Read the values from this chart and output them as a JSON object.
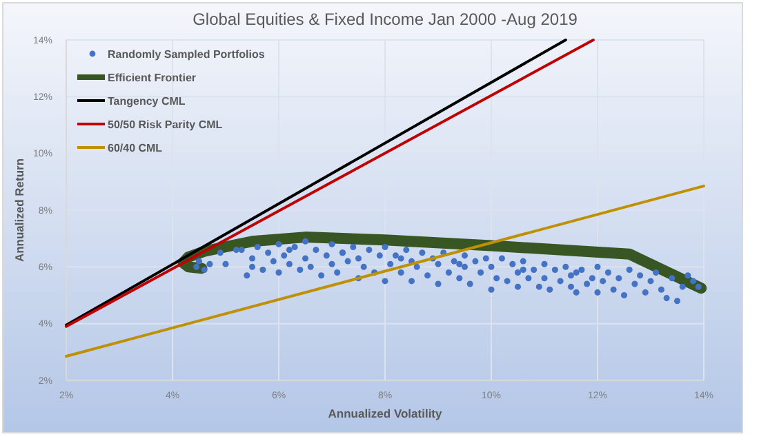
{
  "chart_data": {
    "type": "scatter",
    "title": "Global Equities & Fixed Income Jan 2000 -Aug 2019",
    "xlabel": "Annualized Volatility",
    "ylabel": "Annualized Return",
    "xlim": [
      2,
      14
    ],
    "ylim": [
      2,
      14
    ],
    "xticks": [
      {
        "value": 2,
        "label": "2%"
      },
      {
        "value": 4,
        "label": "4%"
      },
      {
        "value": 6,
        "label": "6%"
      },
      {
        "value": 8,
        "label": "8%"
      },
      {
        "value": 10,
        "label": "10%"
      },
      {
        "value": 12,
        "label": "12%"
      },
      {
        "value": 14,
        "label": "14%"
      }
    ],
    "yticks": [
      {
        "value": 2,
        "label": "2%"
      },
      {
        "value": 4,
        "label": "4%"
      },
      {
        "value": 6,
        "label": "6%"
      },
      {
        "value": 8,
        "label": "8%"
      },
      {
        "value": 10,
        "label": "10%"
      },
      {
        "value": 12,
        "label": "12%"
      },
      {
        "value": 14,
        "label": "14%"
      }
    ],
    "grid": true,
    "legend": "top left",
    "series": [
      {
        "name": "Randomly Sampled Portfolios",
        "marker": "circle",
        "color": "#4472c4",
        "x": [
          4.45,
          4.7,
          4.5,
          4.6,
          4.9,
          5.0,
          5.2,
          5.3,
          5.4,
          5.5,
          5.5,
          5.6,
          5.7,
          5.8,
          5.9,
          6.0,
          6.0,
          6.1,
          6.2,
          6.3,
          6.4,
          6.5,
          6.5,
          6.6,
          6.7,
          6.8,
          6.9,
          7.0,
          7.0,
          7.1,
          7.2,
          7.3,
          7.4,
          7.5,
          7.5,
          7.6,
          7.7,
          7.8,
          7.9,
          8.0,
          8.0,
          8.1,
          8.2,
          8.3,
          8.4,
          8.5,
          8.5,
          8.6,
          8.7,
          8.8,
          8.9,
          9.0,
          9.0,
          9.1,
          9.2,
          9.3,
          9.4,
          9.5,
          9.5,
          9.6,
          9.7,
          9.8,
          9.9,
          10.0,
          10.0,
          10.1,
          10.2,
          10.3,
          10.4,
          10.5,
          10.5,
          10.6,
          10.7,
          10.8,
          10.9,
          11.0,
          11.0,
          11.1,
          11.2,
          11.3,
          11.4,
          11.5,
          11.5,
          11.6,
          11.7,
          11.8,
          11.9,
          12.0,
          12.0,
          12.1,
          12.2,
          12.3,
          12.4,
          12.5,
          12.6,
          12.7,
          12.8,
          12.9,
          13.0,
          13.1,
          13.2,
          13.3,
          13.4,
          13.5,
          13.6,
          13.7,
          13.8,
          13.9,
          6.2,
          7.2,
          8.3,
          9.4,
          10.6,
          11.6
        ],
        "values": [
          6.0,
          6.1,
          6.2,
          5.9,
          6.5,
          6.1,
          6.6,
          6.6,
          5.7,
          6.3,
          6.0,
          6.7,
          5.9,
          6.5,
          6.2,
          6.8,
          5.8,
          6.4,
          6.1,
          6.7,
          5.9,
          6.9,
          6.3,
          6.0,
          6.6,
          5.7,
          6.4,
          6.8,
          6.1,
          5.8,
          6.5,
          6.2,
          6.7,
          5.6,
          6.3,
          6.0,
          6.6,
          5.8,
          6.4,
          6.7,
          5.5,
          6.1,
          6.4,
          5.8,
          6.6,
          6.2,
          5.5,
          6.0,
          6.5,
          5.7,
          6.3,
          5.4,
          6.1,
          6.5,
          5.8,
          6.2,
          5.6,
          6.4,
          6.0,
          5.4,
          6.2,
          5.8,
          6.3,
          5.2,
          6.0,
          5.6,
          6.3,
          5.5,
          6.1,
          5.8,
          5.3,
          6.2,
          5.6,
          5.9,
          5.3,
          6.1,
          5.6,
          5.2,
          5.9,
          5.5,
          6.0,
          5.3,
          5.7,
          5.1,
          5.9,
          5.4,
          5.6,
          6.0,
          5.1,
          5.5,
          5.8,
          5.2,
          5.6,
          5.0,
          5.9,
          5.4,
          5.7,
          5.1,
          5.5,
          5.8,
          5.2,
          4.9,
          5.6,
          4.8,
          5.3,
          5.7,
          5.5,
          5.3,
          6.6,
          6.5,
          6.3,
          6.1,
          5.9,
          5.8
        ]
      },
      {
        "name": "Efficient Frontier",
        "type": "line",
        "marker": "none",
        "color": "#375623",
        "x": [
          4.55,
          4.3,
          4.2,
          4.3,
          4.6,
          5.5,
          6.5,
          8,
          10,
          12.6,
          13.95
        ],
        "values": [
          5.95,
          6.0,
          6.15,
          6.35,
          6.55,
          6.9,
          7.05,
          6.95,
          6.75,
          6.45,
          5.25
        ]
      },
      {
        "name": "Tangency CML",
        "type": "line",
        "marker": "none",
        "color": "#000000",
        "x": [
          2,
          11.4
        ],
        "values": [
          3.95,
          14
        ]
      },
      {
        "name": "50/50 Risk Parity CML",
        "type": "line",
        "marker": "none",
        "color": "#c00000",
        "x": [
          2,
          11.92
        ],
        "values": [
          3.9,
          14
        ]
      },
      {
        "name": "60/40 CML",
        "type": "line",
        "marker": "none",
        "color": "#bf9000",
        "x": [
          2,
          14
        ],
        "values": [
          2.85,
          8.85
        ]
      }
    ]
  }
}
